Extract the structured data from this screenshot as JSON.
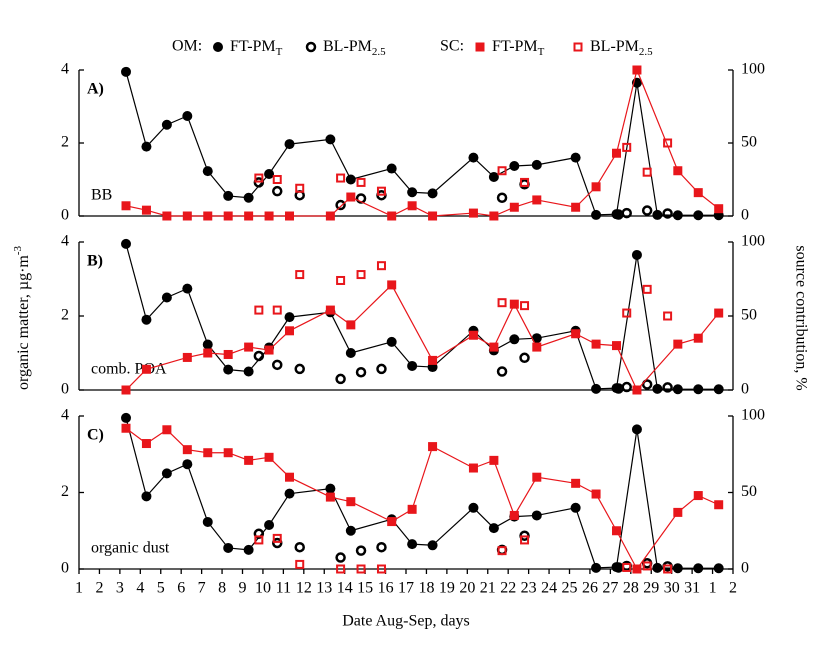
{
  "legend": {
    "groups": [
      {
        "label": "OM:",
        "color": "#000000",
        "items": [
          {
            "name": "FT-PM",
            "sub": "T",
            "marker": "filled-circle"
          },
          {
            "name": "BL-PM",
            "sub": "2.5",
            "marker": "open-circle"
          }
        ]
      },
      {
        "label": "SC:",
        "color": "#e8161b",
        "items": [
          {
            "name": "FT-PM",
            "sub": "T",
            "marker": "filled-square"
          },
          {
            "name": "BL-PM",
            "sub": "2.5",
            "marker": "open-square"
          }
        ]
      }
    ]
  },
  "ylabel": {
    "text": "organic matter, µg·m",
    "sup": "-3"
  },
  "y2label": "source contribution, %",
  "chart_data": [
    {
      "type": "line",
      "panel": "A)",
      "annotation": "BB",
      "xlim": [
        1,
        33
      ],
      "ylim": [
        0,
        4
      ],
      "yticks": [
        0,
        2,
        4
      ],
      "y2lim": [
        0,
        100
      ],
      "y2ticks": [
        0,
        50,
        100
      ],
      "series": [
        {
          "color": "#000000",
          "marker": "filled-circle",
          "line": true,
          "x": [
            3.3,
            4.3,
            5.3,
            6.3,
            7.3,
            8.3,
            9.3,
            10.3,
            11.3,
            13.3,
            14.3,
            16.3,
            17.3,
            18.3,
            20.3,
            21.3,
            22.3,
            23.4,
            25.3,
            26.3,
            27.3,
            28.3,
            29.3,
            30.3,
            31.3,
            32.3
          ],
          "values": [
            3.95,
            1.9,
            2.5,
            2.74,
            1.23,
            0.55,
            0.5,
            1.15,
            1.97,
            2.1,
            1.0,
            1.3,
            0.65,
            0.62,
            1.6,
            1.07,
            1.37,
            1.4,
            1.6,
            0.03,
            0.05,
            3.65,
            0.03,
            0.02,
            0.02,
            0.02
          ]
        },
        {
          "color": "#000000",
          "marker": "open-circle",
          "line": false,
          "x": [
            9.8,
            10.7,
            11.8,
            13.8,
            14.8,
            15.8,
            21.7,
            22.8,
            27.4,
            27.8,
            28.8,
            29.8
          ],
          "values": [
            0.92,
            0.68,
            0.57,
            0.3,
            0.48,
            0.57,
            0.5,
            0.87,
            0.04,
            0.08,
            0.15,
            0.07
          ]
        },
        {
          "color": "#e8161b",
          "marker": "filled-square",
          "line": true,
          "axis": "y2",
          "x": [
            3.3,
            4.3,
            5.3,
            6.3,
            7.3,
            8.3,
            9.3,
            10.3,
            11.3,
            13.3,
            14.3,
            16.3,
            17.3,
            18.3,
            20.3,
            21.3,
            22.3,
            23.4,
            25.3,
            26.3,
            27.3,
            28.3,
            30.3,
            31.3,
            32.3
          ],
          "values": [
            7,
            4,
            0,
            0,
            0,
            0,
            0,
            0,
            0,
            0,
            13,
            0,
            7,
            0,
            2,
            0,
            6,
            11,
            6,
            20,
            43,
            100,
            31,
            16,
            5
          ]
        },
        {
          "color": "#e8161b",
          "marker": "open-square",
          "line": false,
          "axis": "y2",
          "x": [
            9.8,
            10.7,
            11.8,
            13.8,
            14.8,
            15.8,
            21.7,
            22.8,
            27.8,
            28.8,
            29.8
          ],
          "values": [
            26,
            25,
            19,
            26,
            23,
            17,
            31,
            23,
            47,
            30,
            50
          ]
        }
      ]
    },
    {
      "type": "line",
      "panel": "B)",
      "annotation": "comb. POA",
      "xlim": [
        1,
        33
      ],
      "ylim": [
        0,
        4
      ],
      "yticks": [
        0,
        2,
        4
      ],
      "y2lim": [
        0,
        100
      ],
      "y2ticks": [
        0,
        50,
        100
      ],
      "series": [
        {
          "color": "#000000",
          "marker": "filled-circle",
          "line": true,
          "x": [
            3.3,
            4.3,
            5.3,
            6.3,
            7.3,
            8.3,
            9.3,
            10.3,
            11.3,
            13.3,
            14.3,
            16.3,
            17.3,
            18.3,
            20.3,
            21.3,
            22.3,
            23.4,
            25.3,
            26.3,
            27.3,
            28.3,
            29.3,
            30.3,
            31.3,
            32.3
          ],
          "values": [
            3.95,
            1.9,
            2.5,
            2.74,
            1.23,
            0.55,
            0.5,
            1.15,
            1.97,
            2.1,
            1.0,
            1.3,
            0.65,
            0.62,
            1.6,
            1.07,
            1.37,
            1.4,
            1.6,
            0.03,
            0.05,
            3.65,
            0.03,
            0.02,
            0.02,
            0.02
          ]
        },
        {
          "color": "#000000",
          "marker": "open-circle",
          "line": false,
          "x": [
            9.8,
            10.7,
            11.8,
            13.8,
            14.8,
            15.8,
            21.7,
            22.8,
            27.4,
            27.8,
            28.8,
            29.8
          ],
          "values": [
            0.92,
            0.68,
            0.57,
            0.3,
            0.48,
            0.57,
            0.5,
            0.87,
            0.04,
            0.08,
            0.15,
            0.07
          ]
        },
        {
          "color": "#e8161b",
          "marker": "filled-square",
          "line": true,
          "axis": "y2",
          "x": [
            3.3,
            4.3,
            6.3,
            7.3,
            8.3,
            9.3,
            10.3,
            11.3,
            13.3,
            14.3,
            16.3,
            18.3,
            20.3,
            21.3,
            22.3,
            23.4,
            25.3,
            26.3,
            27.3,
            28.3,
            30.3,
            31.3,
            32.3
          ],
          "values": [
            0,
            14,
            22,
            25,
            24,
            29,
            27,
            40,
            54,
            44,
            71,
            20,
            37,
            29,
            58,
            29,
            38,
            31,
            30,
            0,
            31,
            35,
            52
          ]
        },
        {
          "color": "#e8161b",
          "marker": "open-square",
          "line": false,
          "axis": "y2",
          "x": [
            9.8,
            10.7,
            11.8,
            13.8,
            14.8,
            15.8,
            21.7,
            22.8,
            27.8,
            28.8,
            29.8
          ],
          "values": [
            54,
            54,
            78,
            74,
            78,
            84,
            59,
            57,
            52,
            68,
            50
          ]
        }
      ]
    },
    {
      "type": "line",
      "panel": "C)",
      "annotation": "organic dust",
      "xlabel": "Date Aug-Sep, days",
      "xlim": [
        1,
        33
      ],
      "xticks": [
        1,
        2,
        3,
        4,
        5,
        6,
        7,
        8,
        9,
        10,
        11,
        12,
        13,
        14,
        15,
        16,
        17,
        18,
        19,
        20,
        21,
        22,
        23,
        24,
        25,
        26,
        27,
        28,
        29,
        30,
        31,
        {
          "value": 32,
          "label": "1"
        },
        {
          "value": 33,
          "label": "2"
        }
      ],
      "ylim": [
        0,
        4
      ],
      "yticks": [
        0,
        2,
        4
      ],
      "y2lim": [
        0,
        100
      ],
      "y2ticks": [
        0,
        50,
        100
      ],
      "series": [
        {
          "color": "#000000",
          "marker": "filled-circle",
          "line": true,
          "x": [
            3.3,
            4.3,
            5.3,
            6.3,
            7.3,
            8.3,
            9.3,
            10.3,
            11.3,
            13.3,
            14.3,
            16.3,
            17.3,
            18.3,
            20.3,
            21.3,
            22.3,
            23.4,
            25.3,
            26.3,
            27.3,
            28.3,
            29.3,
            30.3,
            31.3,
            32.3
          ],
          "values": [
            3.95,
            1.9,
            2.5,
            2.74,
            1.23,
            0.55,
            0.5,
            1.15,
            1.97,
            2.1,
            1.0,
            1.3,
            0.65,
            0.62,
            1.6,
            1.07,
            1.37,
            1.4,
            1.6,
            0.03,
            0.05,
            3.65,
            0.03,
            0.02,
            0.02,
            0.02
          ]
        },
        {
          "color": "#000000",
          "marker": "open-circle",
          "line": false,
          "x": [
            9.8,
            10.7,
            11.8,
            13.8,
            14.8,
            15.8,
            21.7,
            22.8,
            27.4,
            27.8,
            28.8,
            29.8
          ],
          "values": [
            0.92,
            0.68,
            0.57,
            0.3,
            0.48,
            0.57,
            0.5,
            0.87,
            0.04,
            0.08,
            0.15,
            0.07
          ]
        },
        {
          "color": "#e8161b",
          "marker": "filled-square",
          "line": true,
          "axis": "y2",
          "x": [
            3.3,
            4.3,
            5.3,
            6.3,
            7.3,
            8.3,
            9.3,
            10.3,
            11.3,
            13.3,
            14.3,
            16.3,
            17.3,
            18.3,
            20.3,
            21.3,
            22.3,
            23.4,
            25.3,
            26.3,
            27.3,
            28.3,
            30.3,
            31.3,
            32.3
          ],
          "values": [
            92,
            82,
            91,
            78,
            76,
            76,
            71,
            73,
            60,
            47,
            44,
            31,
            39,
            80,
            66,
            71,
            35,
            60,
            56,
            49,
            25,
            0,
            37,
            48,
            42
          ]
        },
        {
          "color": "#e8161b",
          "marker": "open-square",
          "line": false,
          "axis": "y2",
          "x": [
            9.8,
            10.7,
            11.8,
            13.8,
            14.8,
            15.8,
            21.7,
            22.8,
            27.8,
            28.8,
            29.8
          ],
          "values": [
            19,
            20,
            3,
            0,
            0,
            0,
            12,
            19,
            1,
            2,
            0
          ]
        }
      ]
    }
  ]
}
